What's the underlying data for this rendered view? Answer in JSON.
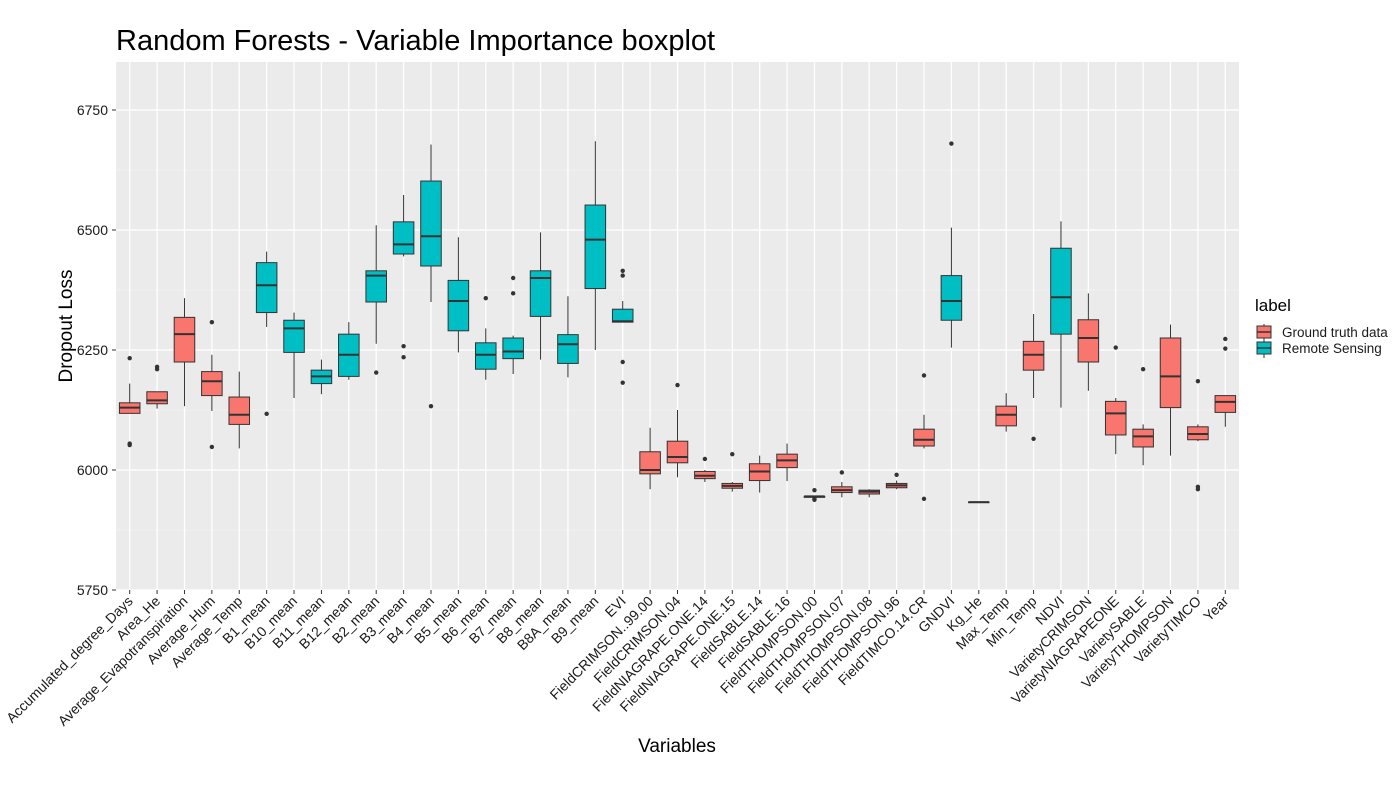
{
  "chart_data": {
    "type": "boxplot",
    "title": "Random Forests - Variable Importance boxplot",
    "xlabel": "Variables",
    "ylabel": "Dropout Loss",
    "ylim": [
      5750,
      6850
    ],
    "yticks": [
      5750,
      6000,
      6250,
      6500,
      6750
    ],
    "grid": true,
    "legend": {
      "title": "label",
      "position": "right",
      "entries": [
        {
          "name": "Ground truth data",
          "color": "#F8766D"
        },
        {
          "name": "Remote Sensing",
          "color": "#00BFC4"
        }
      ]
    },
    "categories": [
      {
        "name": "Accumulated_degree_Days",
        "group": "Ground truth data",
        "min": 6118,
        "q1": 6118,
        "median": 6130,
        "q3": 6140,
        "max": 6180,
        "outliers": [
          6233,
          6055,
          6052
        ]
      },
      {
        "name": "Area_He",
        "group": "Ground truth data",
        "min": 6128,
        "q1": 6138,
        "median": 6145,
        "q3": 6163,
        "max": 6163,
        "outliers": [
          6215,
          6210
        ]
      },
      {
        "name": "Average_Evapotranspiration",
        "group": "Ground truth data",
        "min": 6133,
        "q1": 6225,
        "median": 6283,
        "q3": 6318,
        "max": 6358,
        "outliers": []
      },
      {
        "name": "Average_Hum",
        "group": "Ground truth data",
        "min": 6123,
        "q1": 6155,
        "median": 6185,
        "q3": 6205,
        "max": 6240,
        "outliers": [
          6308,
          6048
        ]
      },
      {
        "name": "Average_Temp",
        "group": "Ground truth data",
        "min": 6045,
        "q1": 6095,
        "median": 6115,
        "q3": 6152,
        "max": 6205,
        "outliers": []
      },
      {
        "name": "B1_mean",
        "group": "Remote Sensing",
        "min": 6298,
        "q1": 6328,
        "median": 6385,
        "q3": 6432,
        "max": 6455,
        "outliers": [
          6117
        ]
      },
      {
        "name": "B10_mean",
        "group": "Remote Sensing",
        "min": 6150,
        "q1": 6245,
        "median": 6295,
        "q3": 6312,
        "max": 6328,
        "outliers": []
      },
      {
        "name": "B11_mean",
        "group": "Remote Sensing",
        "min": 6158,
        "q1": 6180,
        "median": 6195,
        "q3": 6208,
        "max": 6230,
        "outliers": []
      },
      {
        "name": "B12_mean",
        "group": "Remote Sensing",
        "min": 6188,
        "q1": 6195,
        "median": 6240,
        "q3": 6283,
        "max": 6308,
        "outliers": []
      },
      {
        "name": "B2_mean",
        "group": "Remote Sensing",
        "min": 6263,
        "q1": 6350,
        "median": 6405,
        "q3": 6415,
        "max": 6510,
        "outliers": [
          6203
        ]
      },
      {
        "name": "B3_mean",
        "group": "Remote Sensing",
        "min": 6445,
        "q1": 6450,
        "median": 6470,
        "q3": 6517,
        "max": 6573,
        "outliers": [
          6258,
          6235
        ]
      },
      {
        "name": "B4_mean",
        "group": "Remote Sensing",
        "min": 6350,
        "q1": 6425,
        "median": 6487,
        "q3": 6602,
        "max": 6678,
        "outliers": [
          6133
        ]
      },
      {
        "name": "B5_mean",
        "group": "Remote Sensing",
        "min": 6245,
        "q1": 6290,
        "median": 6352,
        "q3": 6395,
        "max": 6485,
        "outliers": []
      },
      {
        "name": "B6_mean",
        "group": "Remote Sensing",
        "min": 6188,
        "q1": 6210,
        "median": 6240,
        "q3": 6265,
        "max": 6295,
        "outliers": [
          6358
        ]
      },
      {
        "name": "B7_mean",
        "group": "Remote Sensing",
        "min": 6200,
        "q1": 6232,
        "median": 6247,
        "q3": 6275,
        "max": 6280,
        "outliers": [
          6400,
          6368
        ]
      },
      {
        "name": "B8_mean",
        "group": "Remote Sensing",
        "min": 6230,
        "q1": 6320,
        "median": 6400,
        "q3": 6415,
        "max": 6495,
        "outliers": []
      },
      {
        "name": "B8A_mean",
        "group": "Remote Sensing",
        "min": 6193,
        "q1": 6222,
        "median": 6262,
        "q3": 6282,
        "max": 6362,
        "outliers": []
      },
      {
        "name": "B9_mean",
        "group": "Remote Sensing",
        "min": 6250,
        "q1": 6378,
        "median": 6480,
        "q3": 6552,
        "max": 6685,
        "outliers": []
      },
      {
        "name": "EVI",
        "group": "Remote Sensing",
        "min": 6308,
        "q1": 6308,
        "median": 6310,
        "q3": 6335,
        "max": 6352,
        "outliers": [
          6415,
          6405,
          6225,
          6182
        ]
      },
      {
        "name": "FieldCRIMSON..99.00",
        "group": "Ground truth data",
        "min": 5960,
        "q1": 5992,
        "median": 6000,
        "q3": 6038,
        "max": 6088,
        "outliers": []
      },
      {
        "name": "FieldCRIMSON.04",
        "group": "Ground truth data",
        "min": 5985,
        "q1": 6015,
        "median": 6027,
        "q3": 6060,
        "max": 6125,
        "outliers": [
          6177
        ]
      },
      {
        "name": "FieldNIAGRAPE.ONE.14",
        "group": "Ground truth data",
        "min": 5975,
        "q1": 5982,
        "median": 5988,
        "q3": 5997,
        "max": 6000,
        "outliers": [
          6023
        ]
      },
      {
        "name": "FieldNIAGRAPE.ONE.15",
        "group": "Ground truth data",
        "min": 5955,
        "q1": 5962,
        "median": 5967,
        "q3": 5972,
        "max": 5975,
        "outliers": [
          6033
        ]
      },
      {
        "name": "FieldSABLE.14",
        "group": "Ground truth data",
        "min": 5953,
        "q1": 5978,
        "median": 5997,
        "q3": 6013,
        "max": 6030,
        "outliers": []
      },
      {
        "name": "FieldSABLE.16",
        "group": "Ground truth data",
        "min": 5977,
        "q1": 6005,
        "median": 6020,
        "q3": 6033,
        "max": 6055,
        "outliers": []
      },
      {
        "name": "FieldTHOMPSON.00",
        "group": "Ground truth data",
        "min": 5943,
        "q1": 5943,
        "median": 5945,
        "q3": 5945,
        "max": 5945,
        "outliers": [
          5958,
          5940,
          5938
        ]
      },
      {
        "name": "FieldTHOMPSON.07",
        "group": "Ground truth data",
        "min": 5943,
        "q1": 5953,
        "median": 5958,
        "q3": 5965,
        "max": 5975,
        "outliers": [
          5995
        ]
      },
      {
        "name": "FieldTHOMPSON.08",
        "group": "Ground truth data",
        "min": 5943,
        "q1": 5950,
        "median": 5955,
        "q3": 5958,
        "max": 5960,
        "outliers": []
      },
      {
        "name": "FieldTHOMPSON.96",
        "group": "Ground truth data",
        "min": 5960,
        "q1": 5963,
        "median": 5968,
        "q3": 5972,
        "max": 5978,
        "outliers": [
          5990
        ]
      },
      {
        "name": "FieldTIMCO.14.CR",
        "group": "Ground truth data",
        "min": 6045,
        "q1": 6050,
        "median": 6063,
        "q3": 6085,
        "max": 6115,
        "outliers": [
          6197,
          5940
        ]
      },
      {
        "name": "GNDVI",
        "group": "Remote Sensing",
        "min": 6255,
        "q1": 6312,
        "median": 6352,
        "q3": 6405,
        "max": 6505,
        "outliers": [
          6680
        ]
      },
      {
        "name": "Kg_He",
        "group": "Ground truth data",
        "min": 5933,
        "q1": 5933,
        "median": 5933,
        "q3": 5933,
        "max": 5933,
        "outliers": []
      },
      {
        "name": "Max_Temp",
        "group": "Ground truth data",
        "min": 6080,
        "q1": 6092,
        "median": 6115,
        "q3": 6133,
        "max": 6160,
        "outliers": []
      },
      {
        "name": "Min_Temp",
        "group": "Ground truth data",
        "min": 6150,
        "q1": 6208,
        "median": 6240,
        "q3": 6268,
        "max": 6325,
        "outliers": [
          6065
        ]
      },
      {
        "name": "NDVI",
        "group": "Remote Sensing",
        "min": 6130,
        "q1": 6283,
        "median": 6360,
        "q3": 6462,
        "max": 6518,
        "outliers": []
      },
      {
        "name": "VarietyCRIMSON",
        "group": "Ground truth data",
        "min": 6165,
        "q1": 6225,
        "median": 6275,
        "q3": 6313,
        "max": 6368,
        "outliers": []
      },
      {
        "name": "VarietyNIAGRAPEONE",
        "group": "Ground truth data",
        "min": 6033,
        "q1": 6073,
        "median": 6118,
        "q3": 6143,
        "max": 6150,
        "outliers": [
          6255
        ]
      },
      {
        "name": "VarietySABLE",
        "group": "Ground truth data",
        "min": 6010,
        "q1": 6048,
        "median": 6070,
        "q3": 6085,
        "max": 6095,
        "outliers": [
          6210
        ]
      },
      {
        "name": "VarietyTHOMPSON",
        "group": "Ground truth data",
        "min": 6030,
        "q1": 6130,
        "median": 6195,
        "q3": 6275,
        "max": 6303,
        "outliers": []
      },
      {
        "name": "VarietyTIMCO",
        "group": "Ground truth data",
        "min": 6060,
        "q1": 6063,
        "median": 6075,
        "q3": 6090,
        "max": 6095,
        "outliers": [
          6185,
          5965,
          5960
        ]
      },
      {
        "name": "Year",
        "group": "Ground truth data",
        "min": 6090,
        "q1": 6120,
        "median": 6142,
        "q3": 6155,
        "max": 6155,
        "outliers": [
          6273,
          6253
        ]
      }
    ]
  }
}
